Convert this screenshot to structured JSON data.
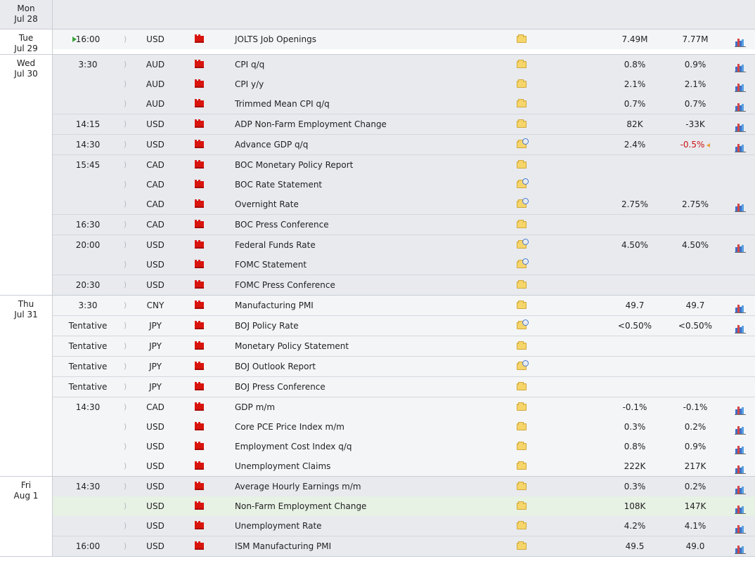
{
  "calendar": {
    "days": [
      {
        "weekday": "Mon",
        "date": "Jul 28",
        "groups": []
      },
      {
        "weekday": "Tue",
        "date": "Jul 29",
        "groups": [
          {
            "time": "16:00",
            "playing": true,
            "events": [
              {
                "currency": "USD",
                "name": "JOLTS Job Openings",
                "folder": "plain",
                "forecast": "7.49M",
                "previous": "7.77M",
                "graph": true
              }
            ]
          }
        ]
      },
      {
        "weekday": "Wed",
        "date": "Jul 30",
        "groups": [
          {
            "time": "3:30",
            "events": [
              {
                "currency": "AUD",
                "name": "CPI q/q",
                "folder": "plain",
                "forecast": "0.8%",
                "previous": "0.9%",
                "graph": true
              },
              {
                "currency": "AUD",
                "name": "CPI y/y",
                "folder": "plain",
                "forecast": "2.1%",
                "previous": "2.1%",
                "graph": true
              },
              {
                "currency": "AUD",
                "name": "Trimmed Mean CPI q/q",
                "folder": "plain",
                "forecast": "0.7%",
                "previous": "0.7%",
                "graph": true
              }
            ]
          },
          {
            "time": "14:15",
            "events": [
              {
                "currency": "USD",
                "name": "ADP Non-Farm Employment Change",
                "folder": "plain",
                "forecast": "82K",
                "previous": "-33K",
                "graph": true
              }
            ]
          },
          {
            "time": "14:30",
            "events": [
              {
                "currency": "USD",
                "name": "Advance GDP q/q",
                "folder": "search",
                "forecast": "2.4%",
                "previous": "-0.5%",
                "previous_negative": true,
                "revised": true,
                "graph": true
              }
            ]
          },
          {
            "time": "15:45",
            "events": [
              {
                "currency": "CAD",
                "name": "BOC Monetary Policy Report",
                "folder": "plain",
                "forecast": "",
                "previous": "",
                "graph": false
              },
              {
                "currency": "CAD",
                "name": "BOC Rate Statement",
                "folder": "search",
                "forecast": "",
                "previous": "",
                "graph": false
              },
              {
                "currency": "CAD",
                "name": "Overnight Rate",
                "folder": "search",
                "forecast": "2.75%",
                "previous": "2.75%",
                "graph": true
              }
            ]
          },
          {
            "time": "16:30",
            "events": [
              {
                "currency": "CAD",
                "name": "BOC Press Conference",
                "folder": "plain",
                "forecast": "",
                "previous": "",
                "graph": false
              }
            ]
          },
          {
            "time": "20:00",
            "events": [
              {
                "currency": "USD",
                "name": "Federal Funds Rate",
                "folder": "search",
                "forecast": "4.50%",
                "previous": "4.50%",
                "graph": true
              },
              {
                "currency": "USD",
                "name": "FOMC Statement",
                "folder": "search",
                "forecast": "",
                "previous": "",
                "graph": false
              }
            ]
          },
          {
            "time": "20:30",
            "events": [
              {
                "currency": "USD",
                "name": "FOMC Press Conference",
                "folder": "plain",
                "forecast": "",
                "previous": "",
                "graph": false
              }
            ]
          }
        ]
      },
      {
        "weekday": "Thu",
        "date": "Jul 31",
        "groups": [
          {
            "time": "3:30",
            "events": [
              {
                "currency": "CNY",
                "name": "Manufacturing PMI",
                "folder": "plain",
                "forecast": "49.7",
                "previous": "49.7",
                "graph": true
              }
            ]
          },
          {
            "time": "Tentative",
            "events": [
              {
                "currency": "JPY",
                "name": "BOJ Policy Rate",
                "folder": "search",
                "forecast": "<0.50%",
                "previous": "<0.50%",
                "graph": true
              }
            ]
          },
          {
            "time": "Tentative",
            "events": [
              {
                "currency": "JPY",
                "name": "Monetary Policy Statement",
                "folder": "plain",
                "forecast": "",
                "previous": "",
                "graph": false
              }
            ]
          },
          {
            "time": "Tentative",
            "events": [
              {
                "currency": "JPY",
                "name": "BOJ Outlook Report",
                "folder": "search",
                "forecast": "",
                "previous": "",
                "graph": false
              }
            ]
          },
          {
            "time": "Tentative",
            "events": [
              {
                "currency": "JPY",
                "name": "BOJ Press Conference",
                "folder": "plain",
                "forecast": "",
                "previous": "",
                "graph": false
              }
            ]
          },
          {
            "time": "14:30",
            "events": [
              {
                "currency": "CAD",
                "name": "GDP m/m",
                "folder": "plain",
                "forecast": "-0.1%",
                "previous": "-0.1%",
                "graph": true
              },
              {
                "currency": "USD",
                "name": "Core PCE Price Index m/m",
                "folder": "plain",
                "forecast": "0.3%",
                "previous": "0.2%",
                "graph": true
              },
              {
                "currency": "USD",
                "name": "Employment Cost Index q/q",
                "folder": "plain",
                "forecast": "0.8%",
                "previous": "0.9%",
                "graph": true
              },
              {
                "currency": "USD",
                "name": "Unemployment Claims",
                "folder": "plain",
                "forecast": "222K",
                "previous": "217K",
                "graph": true
              }
            ]
          }
        ]
      },
      {
        "weekday": "Fri",
        "date": "Aug 1",
        "groups": [
          {
            "time": "14:30",
            "events": [
              {
                "currency": "USD",
                "name": "Average Hourly Earnings m/m",
                "folder": "plain",
                "forecast": "0.3%",
                "previous": "0.2%",
                "graph": true
              },
              {
                "currency": "USD",
                "name": "Non-Farm Employment Change",
                "folder": "plain",
                "forecast": "108K",
                "previous": "147K",
                "graph": true,
                "highlight": true
              },
              {
                "currency": "USD",
                "name": "Unemployment Rate",
                "folder": "plain",
                "forecast": "4.2%",
                "previous": "4.1%",
                "graph": true
              }
            ]
          },
          {
            "time": "16:00",
            "events": [
              {
                "currency": "USD",
                "name": "ISM Manufacturing PMI",
                "folder": "plain",
                "forecast": "49.5",
                "previous": "49.0",
                "graph": true
              }
            ]
          }
        ]
      }
    ]
  },
  "colors": {
    "row_light": "#f4f5f7",
    "row_dark": "#e8eaee",
    "highlight_row": "#e7f1e4",
    "impact_high": "#d9140d",
    "negative_value": "#cc1111"
  },
  "icons": {
    "sound": "sound-icon",
    "impact": "high-impact-icon",
    "folder": "folder-icon",
    "folder_search": "folder-search-icon",
    "graph": "bar-graph-icon",
    "playing": "play-icon"
  }
}
